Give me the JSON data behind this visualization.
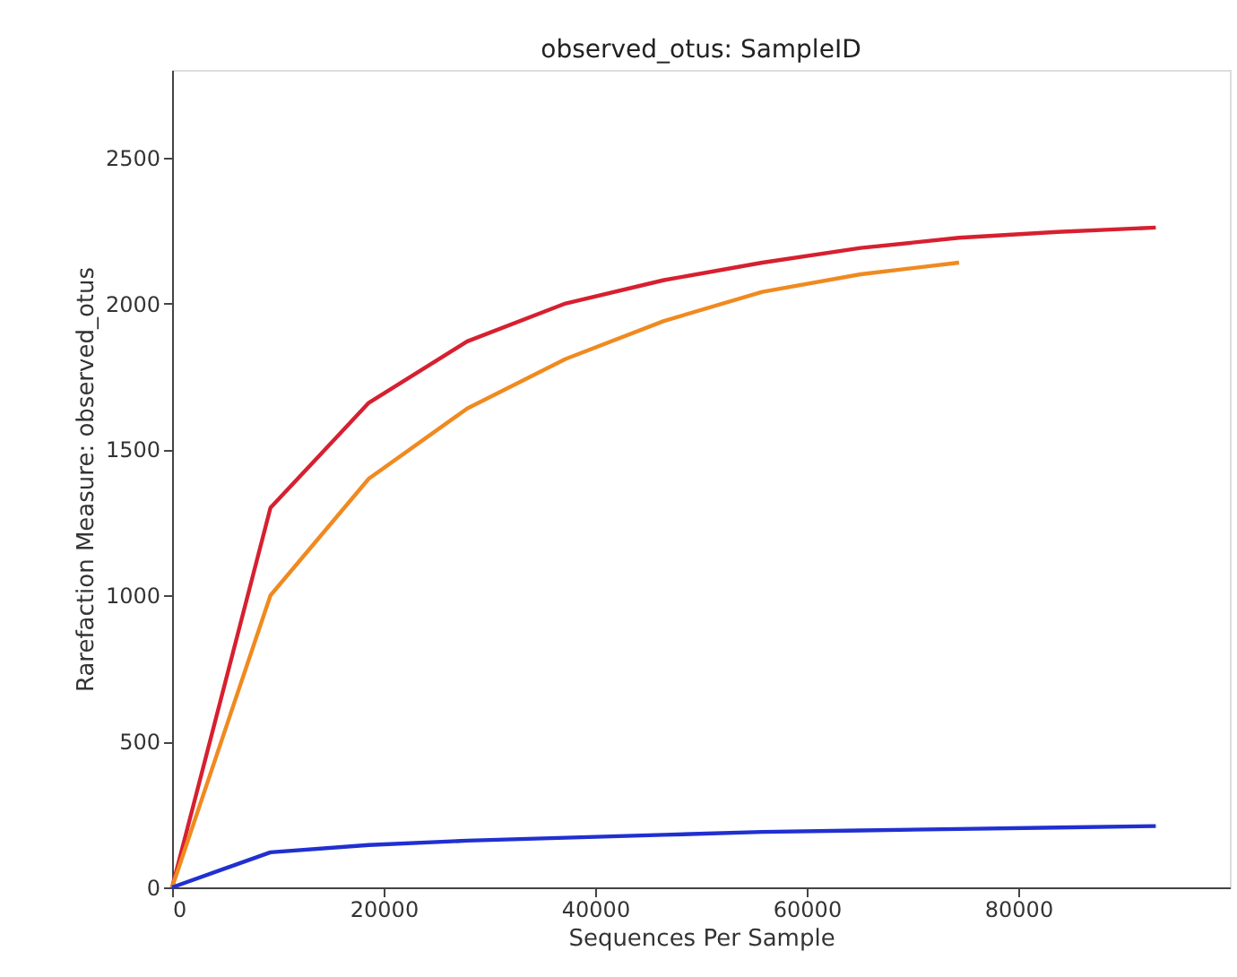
{
  "chart_data": {
    "type": "line",
    "title": "observed_otus: SampleID",
    "xlabel": "Sequences Per Sample",
    "ylabel": "Rarefaction Measure: observed_otus",
    "xlim": [
      0,
      100000
    ],
    "xticks": [
      0,
      20000,
      40000,
      60000,
      80000
    ],
    "ylim": [
      0,
      2800
    ],
    "yticks": [
      0,
      500,
      1000,
      1500,
      2000,
      2500
    ],
    "grid": false,
    "marker": "none",
    "line_style": "solid",
    "series": [
      {
        "color": "#d62030",
        "x": [
          0,
          9300,
          18600,
          27900,
          37200,
          46500,
          55800,
          65100,
          74400,
          83700,
          93000
        ],
        "values": [
          0,
          1300,
          1660,
          1870,
          2000,
          2080,
          2140,
          2190,
          2225,
          2245,
          2260
        ]
      },
      {
        "color": "#f08a20",
        "x": [
          0,
          9300,
          18600,
          27900,
          37200,
          46500,
          55800,
          65100,
          74400
        ],
        "values": [
          0,
          1000,
          1400,
          1640,
          1810,
          1940,
          2040,
          2100,
          2140
        ]
      },
      {
        "color": "#2030d0",
        "x": [
          0,
          9300,
          18600,
          27900,
          37200,
          46500,
          55800,
          65100,
          74400,
          83700,
          93000
        ],
        "values": [
          0,
          120,
          145,
          160,
          170,
          180,
          190,
          195,
          200,
          205,
          210
        ]
      }
    ]
  }
}
